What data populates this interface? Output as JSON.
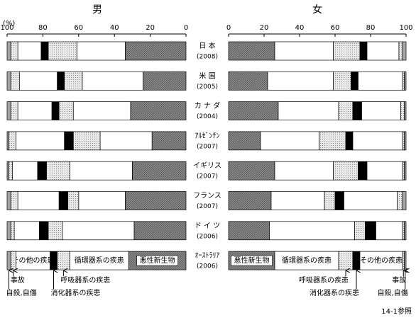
{
  "chart_data": [
    {
      "type": "stacked-barh",
      "title": "男",
      "axis_label": "(%)",
      "reversed": true,
      "xlim": [
        0,
        100
      ],
      "xticks": [
        0,
        20,
        40,
        60,
        80,
        100
      ],
      "categories": [
        "日 本",
        "米 国",
        "カ ナ ダ",
        "ｱﾙｾﾞﾝﾁﾝ",
        "イギリス",
        "フランス",
        "ド イ ツ",
        "ｵｰｽﾄﾗﾘｱ"
      ],
      "years": [
        "(2008)",
        "(2005)",
        "(2004)",
        "(2007)",
        "(2007)",
        "(2007)",
        "(2006)",
        "(2006)"
      ],
      "series": [
        {
          "name": "悪性新生物",
          "color": "#8c8c8c",
          "pattern": "hatch",
          "values": [
            34,
            24,
            31,
            19,
            30,
            34,
            29,
            32
          ]
        },
        {
          "name": "循環器系の疾患",
          "color": "#ffffff",
          "values": [
            27,
            34,
            32,
            29,
            35,
            26,
            40,
            33
          ]
        },
        {
          "name": "呼吸器系の疾患",
          "color": "#d9d9d9",
          "pattern": "dots",
          "values": [
            16,
            10,
            8,
            15,
            13,
            6,
            8,
            7
          ]
        },
        {
          "name": "消化器系の疾患",
          "color": "#000000",
          "values": [
            4,
            4,
            4,
            5,
            5,
            5,
            5,
            4
          ]
        },
        {
          "name": "その他の疾患",
          "color": "#ffffff",
          "values": [
            13,
            21,
            19,
            27,
            14,
            23,
            14,
            19
          ]
        },
        {
          "name": "事故",
          "color": "#e6e6e6",
          "pattern": "dots",
          "values": [
            4,
            5,
            4,
            4,
            2,
            4,
            2,
            3
          ]
        },
        {
          "name": "自殺,自傷",
          "color": "#a6a6a6",
          "values": [
            2,
            2,
            2,
            1,
            1,
            2,
            2,
            2
          ]
        }
      ]
    },
    {
      "type": "stacked-barh",
      "title": "女",
      "reversed": false,
      "xlim": [
        0,
        100
      ],
      "xticks": [
        0,
        20,
        40,
        60,
        80,
        100
      ],
      "series": [
        {
          "name": "悪性新生物",
          "color": "#8c8c8c",
          "pattern": "hatch",
          "values": [
            26,
            22,
            28,
            18,
            26,
            24,
            23,
            26
          ]
        },
        {
          "name": "循環器系の疾患",
          "color": "#ffffff",
          "values": [
            33,
            37,
            34,
            33,
            33,
            30,
            48,
            36
          ]
        },
        {
          "name": "呼吸器系の疾患",
          "color": "#d9d9d9",
          "pattern": "dots",
          "values": [
            15,
            10,
            8,
            15,
            14,
            6,
            6,
            8
          ]
        },
        {
          "name": "消化器系の疾患",
          "color": "#000000",
          "values": [
            4,
            4,
            5,
            4,
            5,
            5,
            6,
            4
          ]
        },
        {
          "name": "その他の疾患",
          "color": "#ffffff",
          "values": [
            18,
            25,
            22,
            28,
            20,
            30,
            15,
            24
          ]
        },
        {
          "name": "事故",
          "color": "#e6e6e6",
          "pattern": "dots",
          "values": [
            2,
            1,
            2,
            1,
            1,
            3,
            1,
            1
          ]
        },
        {
          "name": "自殺,自傷",
          "color": "#a6a6a6",
          "values": [
            2,
            1,
            1,
            1,
            1,
            2,
            1,
            1
          ]
        }
      ]
    }
  ],
  "note": "14-1参照"
}
